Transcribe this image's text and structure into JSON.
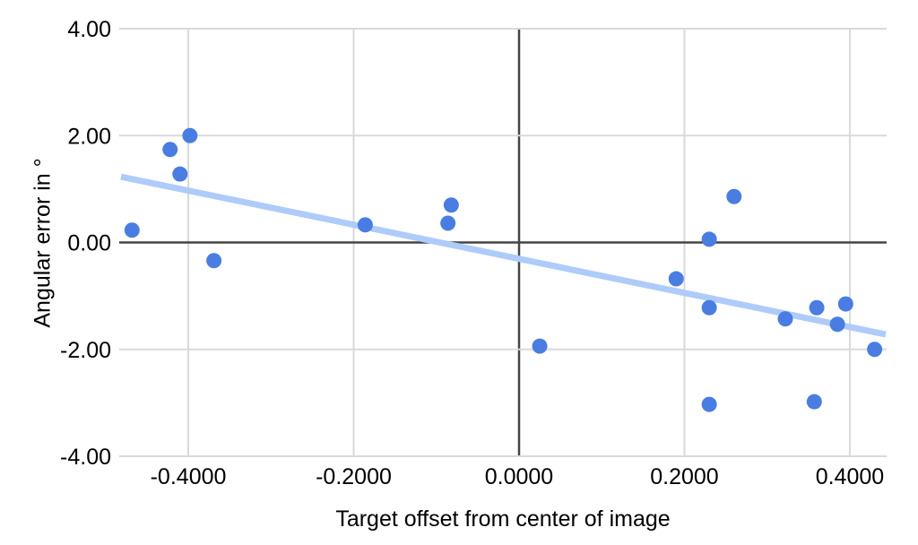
{
  "chart_data": {
    "type": "scatter",
    "title": "",
    "xlabel": "Target offset from center of image",
    "ylabel": "Angular error in °",
    "xlim": [
      -0.4835,
      0.4445
    ],
    "ylim": [
      -4,
      4
    ],
    "grid": true,
    "legend_position": "none",
    "x_ticks": [
      {
        "value": -0.4,
        "label": "-0.4000"
      },
      {
        "value": -0.2,
        "label": "-0.2000"
      },
      {
        "value": 0.0,
        "label": "0.0000"
      },
      {
        "value": 0.2,
        "label": "0.2000"
      },
      {
        "value": 0.4,
        "label": "0.4000"
      }
    ],
    "y_ticks": [
      {
        "value": 4,
        "label": "4.00"
      },
      {
        "value": 2,
        "label": "2.00"
      },
      {
        "value": 0,
        "label": "0.00"
      },
      {
        "value": -2,
        "label": "-2.00"
      },
      {
        "value": -4,
        "label": "-4.00"
      }
    ],
    "points": [
      {
        "x": -0.468,
        "y": 0.23
      },
      {
        "x": -0.422,
        "y": 1.74
      },
      {
        "x": -0.41,
        "y": 1.28
      },
      {
        "x": -0.398,
        "y": 2.0
      },
      {
        "x": -0.369,
        "y": -0.34
      },
      {
        "x": -0.186,
        "y": 0.33
      },
      {
        "x": -0.086,
        "y": 0.36
      },
      {
        "x": -0.082,
        "y": 0.7
      },
      {
        "x": 0.025,
        "y": -1.94
      },
      {
        "x": 0.19,
        "y": -0.68
      },
      {
        "x": 0.23,
        "y": 0.06
      },
      {
        "x": 0.23,
        "y": -1.22
      },
      {
        "x": 0.23,
        "y": -3.03
      },
      {
        "x": 0.26,
        "y": 0.86
      },
      {
        "x": 0.322,
        "y": -1.43
      },
      {
        "x": 0.357,
        "y": -2.98
      },
      {
        "x": 0.36,
        "y": -1.22
      },
      {
        "x": 0.385,
        "y": -1.53
      },
      {
        "x": 0.395,
        "y": -1.15
      },
      {
        "x": 0.43,
        "y": -2.0
      }
    ],
    "trendline": {
      "x1": -0.4814,
      "y1": 1.23,
      "x2": 0.4434,
      "y2": -1.72
    },
    "colors": {
      "point": "#4a7de2",
      "trendline": "#aecbfa",
      "gridline": "#d9d9d9",
      "zero_axis": "#454545",
      "text": "#000000",
      "background": "#ffffff"
    }
  }
}
